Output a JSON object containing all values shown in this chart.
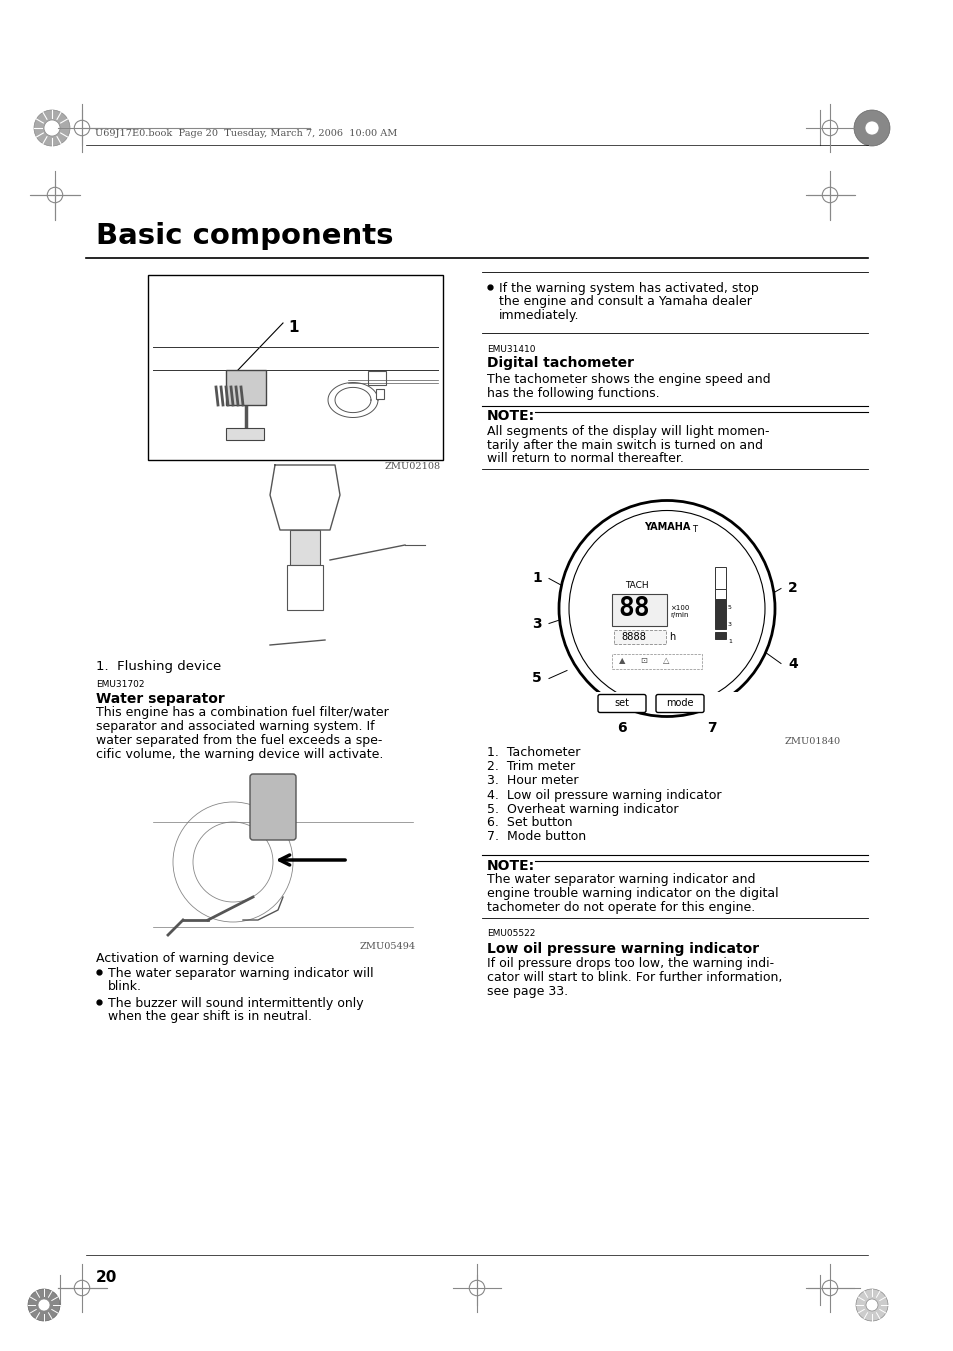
{
  "page_bg": "#ffffff",
  "page_number": "20",
  "header_text": "U69J17E0.book  Page 20  Tuesday, March 7, 2006  10:00 AM",
  "title": "Basic components",
  "section1_id": "EMU31702",
  "section1_heading": "Water separator",
  "section1_body_lines": [
    "This engine has a combination fuel filter/water",
    "separator and associated warning system. If",
    "water separated from the fuel exceeds a spe-",
    "cific volume, the warning device will activate."
  ],
  "fig1_caption": "ZMU02108",
  "fig1_label": "1.  Flushing device",
  "fig2_caption": "ZMU05494",
  "activation_heading": "Activation of warning device",
  "bullet1_lines": [
    "The water separator warning indicator will",
    "blink."
  ],
  "bullet2_lines": [
    "The buzzer will sound intermittently only",
    "when the gear shift is in neutral."
  ],
  "bullet3_lines": [
    "If the warning system has activated, stop",
    "the engine and consult a Yamaha dealer",
    "immediately."
  ],
  "section2_id": "EMU31410",
  "section2_heading": "Digital tachometer",
  "section2_body_lines": [
    "The tachometer shows the engine speed and",
    "has the following functions."
  ],
  "note1_heading": "NOTE:",
  "note1_body_lines": [
    "All segments of the display will light momen-",
    "tarily after the main switch is turned on and",
    "will return to normal thereafter."
  ],
  "tach_labels": [
    "1.  Tachometer",
    "2.  Trim meter",
    "3.  Hour meter",
    "4.  Low oil pressure warning indicator",
    "5.  Overheat warning indicator",
    "6.  Set button",
    "7.  Mode button"
  ],
  "fig3_caption": "ZMU01840",
  "note2_heading": "NOTE:",
  "note2_body_lines": [
    "The water separator warning indicator and",
    "engine trouble warning indicator on the digital",
    "tachometer do not operate for this engine."
  ],
  "section3_id": "EMU05522",
  "section3_heading": "Low oil pressure warning indicator",
  "section3_body_lines": [
    "If oil pressure drops too low, the warning indi-",
    "cator will start to blink. For further information,",
    "see page 33."
  ],
  "text_color": "#000000",
  "gray_color": "#555555"
}
